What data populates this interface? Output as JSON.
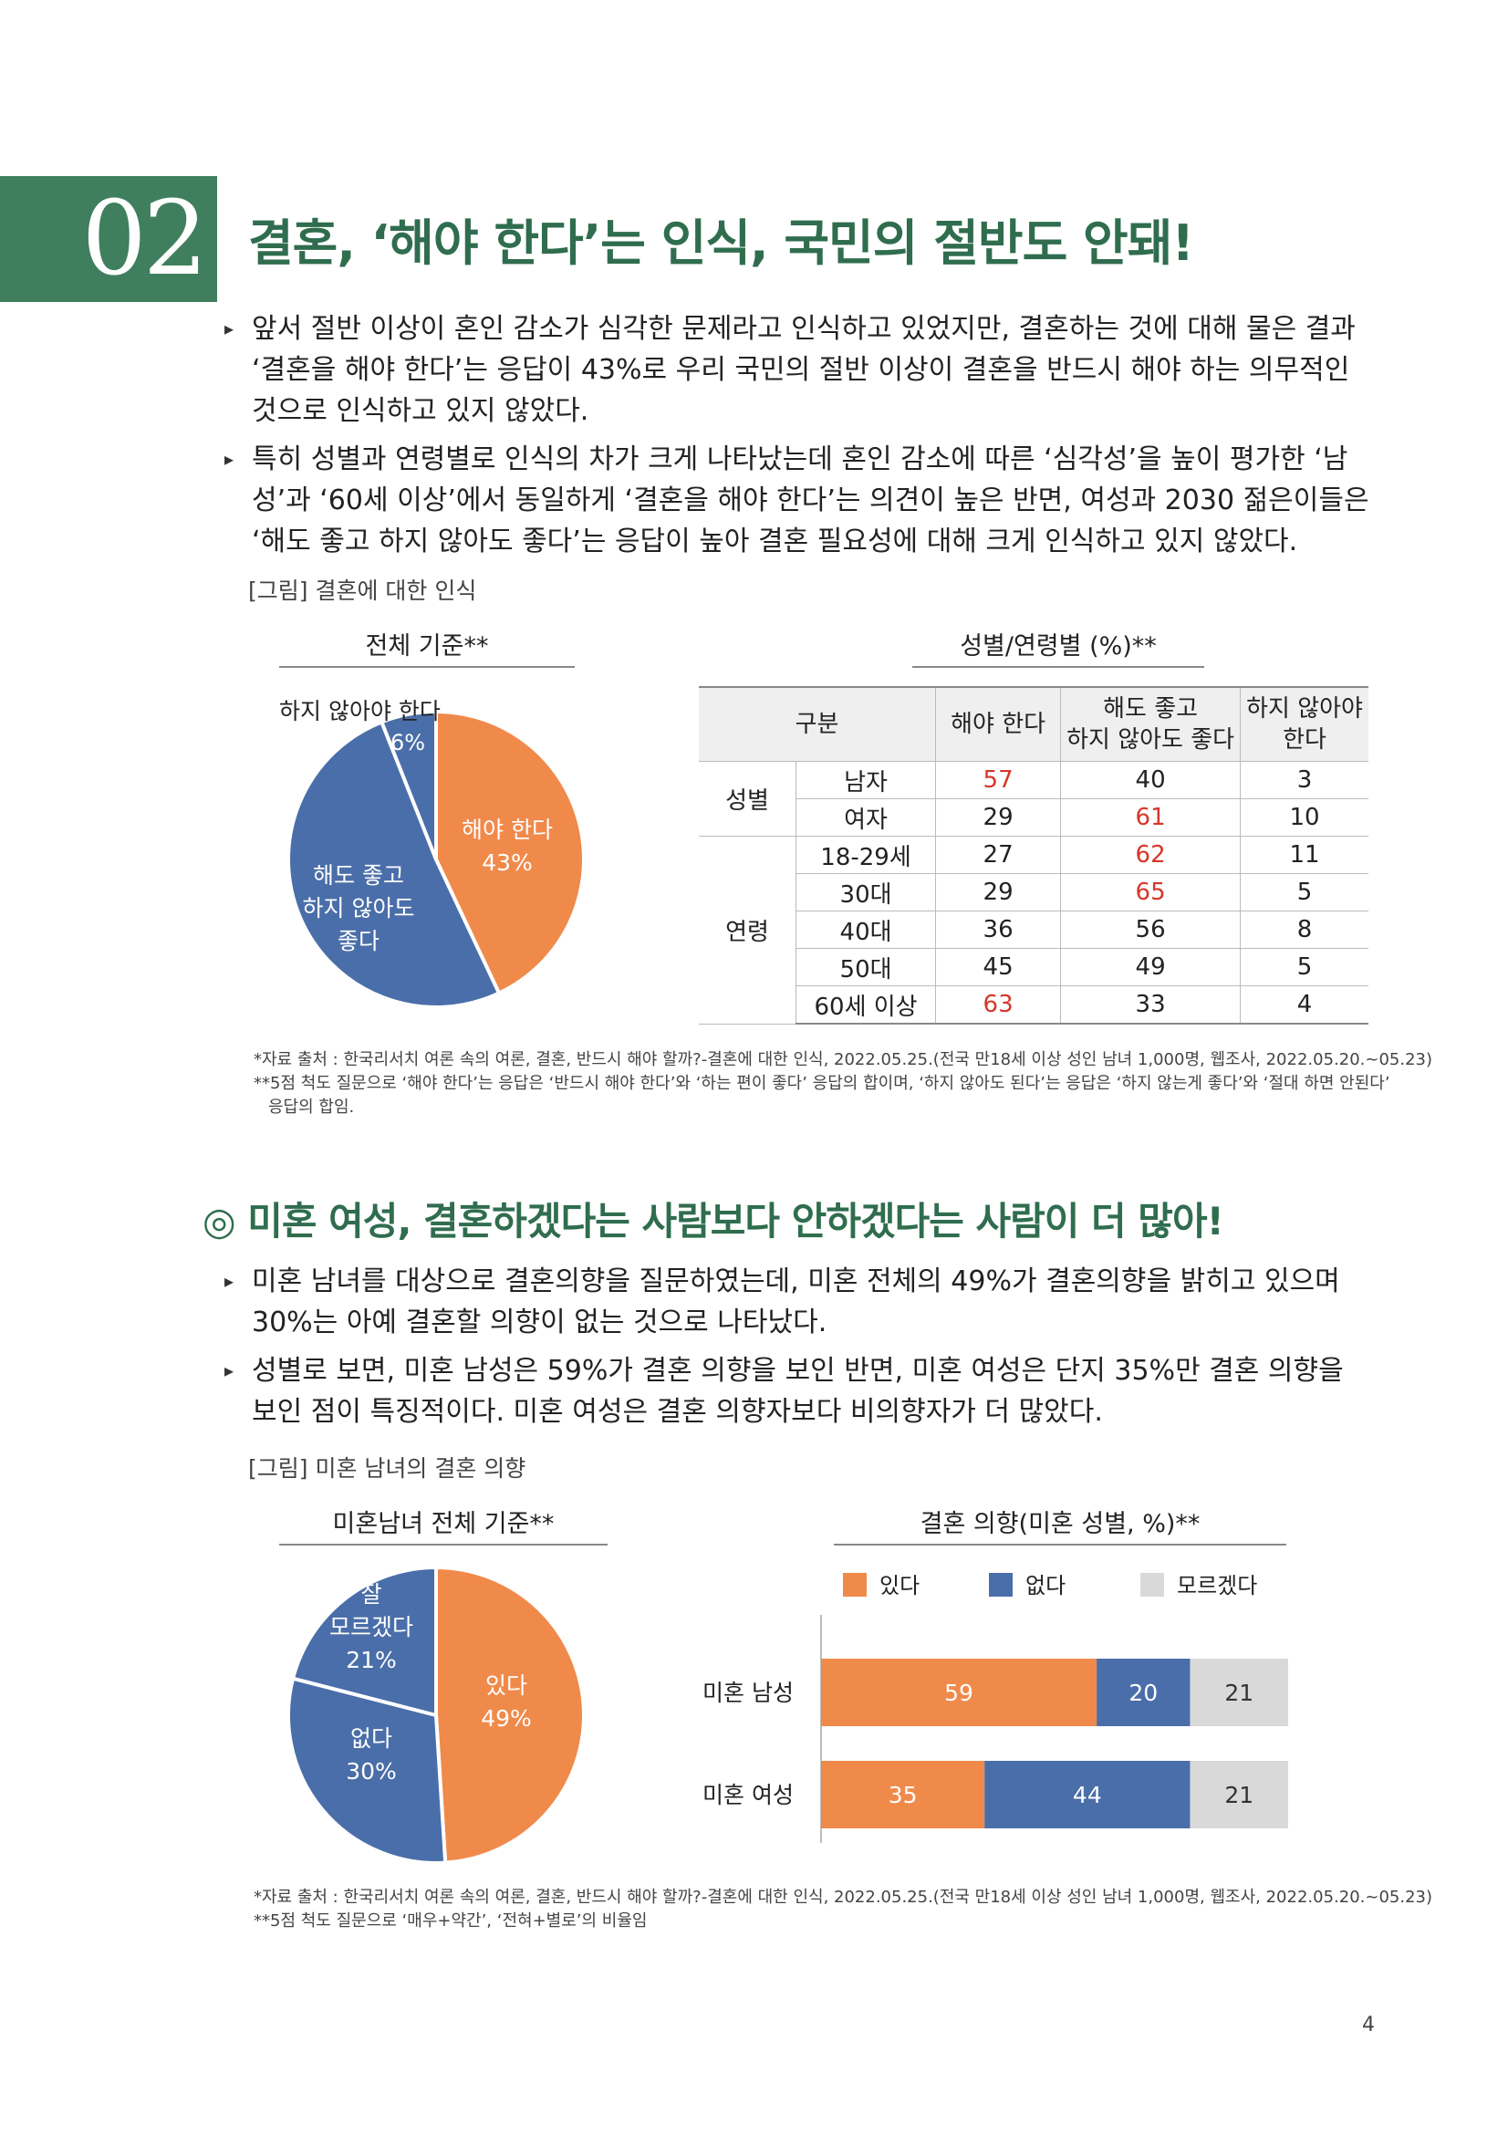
{
  "section": {
    "number": "02",
    "title": "결혼, ‘해야 한다’는 인식, 국민의 절반도 안돼!"
  },
  "bullets1": [
    "앞서 절반 이상이 혼인 감소가 심각한 문제라고 인식하고 있었지만, 결혼하는 것에 대해 물은 결과 ‘결혼을 해야 한다’는 응답이 43%로 우리 국민의 절반 이상이 결혼을 반드시 해야 하는 의무적인 것으로 인식하고 있지 않았다.",
    "특히 성별과 연령별로 인식의 차가 크게 나타났는데 혼인 감소에 따른 ‘심각성’을 높이 평가한 ‘남성’과 ‘60세 이상’에서 동일하게 ‘결혼을 해야 한다’는 의견이 높은 반면, 여성과 2030 젊은이들은 ‘해도 좋고 하지 않아도 좋다’는 응답이 높아 결혼 필요성에 대해 크게 인식하고 있지 않았다."
  ],
  "figure1": {
    "caption": "[그림] 결혼에 대한 인식",
    "pie_head": "전체 기준**",
    "table_head": "성별/연령별 (%)**",
    "pie_labels": {
      "must": "해야 한다",
      "must_pct": "43%",
      "either": "해도 좋고\n하지 않아도\n좋다",
      "either_pct": "51%",
      "mustnot": "하지 않아야 한다",
      "mustnot_pct": "6%"
    },
    "table": {
      "col_group": "구분",
      "col_must": "해야 한다",
      "col_either_1": "해도 좋고",
      "col_either_2": "하지 않아도 좋다",
      "col_mustnot_1": "하지 않아야",
      "col_mustnot_2": "한다",
      "group_gender": "성별",
      "group_age": "연령",
      "rows": [
        {
          "label": "남자",
          "must": "57",
          "either": "40",
          "mustnot": "3"
        },
        {
          "label": "여자",
          "must": "29",
          "either": "61",
          "mustnot": "10"
        },
        {
          "label": "18-29세",
          "must": "27",
          "either": "62",
          "mustnot": "11"
        },
        {
          "label": "30대",
          "must": "29",
          "either": "65",
          "mustnot": "5"
        },
        {
          "label": "40대",
          "must": "36",
          "either": "56",
          "mustnot": "8"
        },
        {
          "label": "50대",
          "must": "45",
          "either": "49",
          "mustnot": "5"
        },
        {
          "label": "60세 이상",
          "must": "63",
          "either": "33",
          "mustnot": "4"
        }
      ]
    },
    "note1": "*자료 출처 : 한국리서치 여론 속의 여론, 결혼, 반드시 해야 할까?-결혼에 대한 인식, 2022.05.25.(전국 만18세 이상 성인 남녀 1,000명, 웹조사, 2022.05.20.~05.23)",
    "note2": "**5점 척도 질문으로 ‘해야 한다’는 응답은 ‘반드시 해야 한다’와 ‘하는 편이 좋다’ 응답의 합이며, ‘하지 않아도 된다’는 응답은 ‘하지 않는게 좋다’와 ‘절대 하면 안된다’",
    "note3": "응답의 합임."
  },
  "subsection": {
    "title": "◎ 미혼 여성, 결혼하겠다는 사람보다 안하겠다는 사람이 더 많아!"
  },
  "bullets2": [
    "미혼 남녀를 대상으로 결혼의향을 질문하였는데, 미혼 전체의 49%가 결혼의향을 밝히고 있으며 30%는 아예 결혼할 의향이 없는 것으로 나타났다.",
    "성별로 보면, 미혼 남성은 59%가 결혼 의향을 보인 반면, 미혼 여성은 단지 35%만 결혼 의향을 보인 점이 특징적이다. 미혼 여성은 결혼 의향자보다 비의향자가 더 많았다."
  ],
  "figure2": {
    "caption": "[그림] 미혼 남녀의 결혼 의향",
    "pie_head": "미혼남녀 전체 기준**",
    "bar_head": "결혼 의향(미혼 성별, %)**",
    "pie_labels": {
      "yes": "있다",
      "yes_pct": "49%",
      "no": "없다",
      "no_pct": "30%",
      "unsure_1": "잘",
      "unsure_2": "모르겠다",
      "unsure_pct": "21%"
    },
    "note1": "*자료 출처 : 한국리서치 여론 속의 여론, 결혼, 반드시 해야 할까?-결혼에 대한 인식, 2022.05.25.(전국 만18세 이상 성인 남녀 1,000명, 웹조사, 2022.05.20.~05.23)",
    "note2": "**5점 척도 질문으로 ‘매우+약간’, ‘전혀+별로’의 비율임"
  },
  "chart_data": [
    {
      "type": "pie",
      "labels": [
        "해야 한다",
        "해도 좋고 하지 않아도 좋다",
        "하지 않아야 한다"
      ],
      "values": [
        43,
        51,
        6
      ],
      "colors": [
        "#f08a4b",
        "#4a6ea9",
        "#4a6ea9"
      ]
    },
    {
      "type": "pie",
      "labels": [
        "있다",
        "없다",
        "잘 모르겠다"
      ],
      "values": [
        49,
        30,
        21
      ],
      "colors": [
        "#f08a4b",
        "#4a6ea9",
        "#4a6ea9"
      ]
    },
    {
      "type": "bar",
      "orientation": "horizontal-stacked",
      "categories": [
        "미혼 남성",
        "미혼 여성"
      ],
      "series": [
        {
          "name": "있다",
          "values": [
            59,
            35
          ],
          "color": "#f08a4b"
        },
        {
          "name": "없다",
          "values": [
            20,
            44
          ],
          "color": "#4a6ea9"
        },
        {
          "name": "모르겠다",
          "values": [
            21,
            21
          ],
          "color": "#d9d9d9"
        }
      ],
      "xlim": [
        0,
        100
      ],
      "legend": "top"
    }
  ],
  "page_number": "4"
}
